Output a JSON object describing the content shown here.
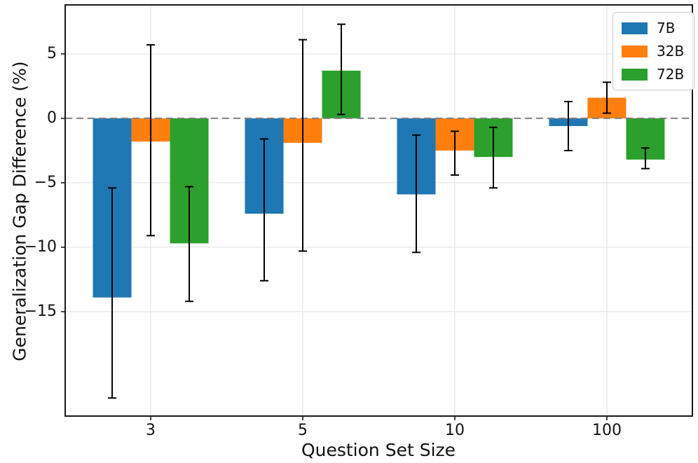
{
  "chart_data": {
    "type": "bar",
    "title": "",
    "xlabel": "Question Set Size",
    "ylabel": "Generalization Gap Difference (%)",
    "categories": [
      "3",
      "5",
      "10",
      "100"
    ],
    "series": [
      {
        "name": "7B",
        "color": "#1f77b4",
        "values": [
          -13.9,
          -7.4,
          -5.9,
          -0.6
        ],
        "error_low": [
          -21.7,
          -12.6,
          -10.4,
          -2.5
        ],
        "error_high": [
          -5.4,
          -1.6,
          -1.3,
          1.3
        ]
      },
      {
        "name": "32B",
        "color": "#ff7f0e",
        "values": [
          -1.8,
          -1.9,
          -2.5,
          1.6
        ],
        "error_low": [
          -9.1,
          -10.3,
          -4.4,
          0.4
        ],
        "error_high": [
          5.7,
          6.1,
          -1.0,
          2.8
        ]
      },
      {
        "name": "72B",
        "color": "#2ca02c",
        "values": [
          -9.7,
          3.7,
          -3.0,
          -3.2
        ],
        "error_low": [
          -14.2,
          0.3,
          -5.4,
          -3.9
        ],
        "error_high": [
          -5.3,
          7.3,
          -0.7,
          -2.3
        ]
      }
    ],
    "ylim": [
      -23.1,
      8.8
    ],
    "ytick_values": [
      5,
      0,
      -5,
      -10,
      -15
    ],
    "ytick_labels": [
      "5",
      "0",
      "−5",
      "−10",
      "−15"
    ],
    "zero_line": {
      "y": 0,
      "style": "dashed",
      "color": "#808080"
    },
    "grid": true,
    "grid_color": "#e4e4e4",
    "error_bar_color": "#000000",
    "spine_color": "#1a1a1a",
    "legend_position": "upper right"
  }
}
